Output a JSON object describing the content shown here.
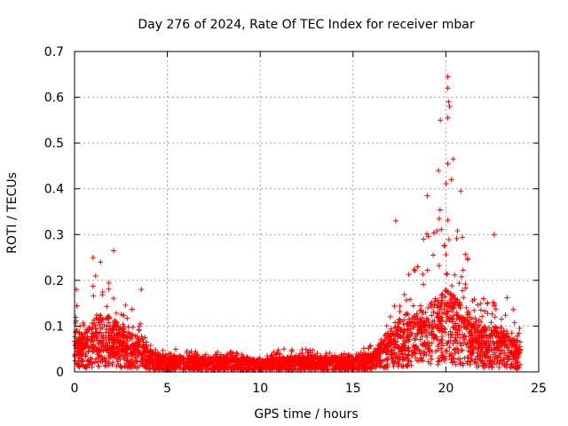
{
  "chart_data": {
    "type": "scatter",
    "title": "Day 276 of 2024, Rate Of TEC Index for receiver mbar",
    "xlabel": "GPS time / hours",
    "ylabel": "ROTI / TECUs",
    "xlim": [
      0,
      25
    ],
    "ylim": [
      0,
      0.7
    ],
    "x_ticks": [
      "0",
      "5",
      "10",
      "15",
      "20",
      "25"
    ],
    "y_ticks": [
      "0",
      "0.1",
      "0.2",
      "0.3",
      "0.4",
      "0.5",
      "0.6",
      "0.7"
    ],
    "grid": true,
    "marker": "plus",
    "marker_color": "#ff0000",
    "series": [
      {
        "name": "ROTI",
        "envelope_hours": [
          0,
          0.5,
          1,
          1.5,
          2,
          2.5,
          3,
          3.5,
          4,
          5,
          6,
          7,
          8,
          9,
          10,
          11,
          12,
          13,
          14,
          15,
          16,
          16.5,
          17,
          17.5,
          18,
          18.5,
          19,
          19.5,
          20,
          20.5,
          21,
          21.5,
          22,
          22.5,
          23,
          23.5,
          24
        ],
        "envelope_max": [
          0.16,
          0.12,
          0.2,
          0.24,
          0.18,
          0.16,
          0.15,
          0.12,
          0.06,
          0.05,
          0.05,
          0.04,
          0.05,
          0.04,
          0.03,
          0.05,
          0.05,
          0.05,
          0.04,
          0.04,
          0.06,
          0.1,
          0.15,
          0.2,
          0.22,
          0.24,
          0.33,
          0.35,
          0.45,
          0.4,
          0.3,
          0.2,
          0.18,
          0.18,
          0.17,
          0.16,
          0.1
        ],
        "envelope_typ": [
          0.06,
          0.05,
          0.07,
          0.08,
          0.07,
          0.06,
          0.05,
          0.05,
          0.03,
          0.02,
          0.02,
          0.02,
          0.02,
          0.02,
          0.015,
          0.02,
          0.02,
          0.02,
          0.02,
          0.02,
          0.025,
          0.04,
          0.06,
          0.07,
          0.08,
          0.08,
          0.09,
          0.1,
          0.11,
          0.1,
          0.09,
          0.07,
          0.06,
          0.06,
          0.06,
          0.05,
          0.04
        ],
        "notable_points": [
          {
            "x": 0.1,
            "y": 0.18
          },
          {
            "x": 1.0,
            "y": 0.25
          },
          {
            "x": 1.4,
            "y": 0.24
          },
          {
            "x": 2.1,
            "y": 0.265
          },
          {
            "x": 3.6,
            "y": 0.18
          },
          {
            "x": 17.3,
            "y": 0.33
          },
          {
            "x": 19.0,
            "y": 0.385
          },
          {
            "x": 19.6,
            "y": 0.44
          },
          {
            "x": 19.7,
            "y": 0.55
          },
          {
            "x": 20.1,
            "y": 0.645
          },
          {
            "x": 20.1,
            "y": 0.62
          },
          {
            "x": 20.15,
            "y": 0.59
          },
          {
            "x": 20.2,
            "y": 0.58
          },
          {
            "x": 20.1,
            "y": 0.555
          },
          {
            "x": 20.4,
            "y": 0.465
          },
          {
            "x": 20.1,
            "y": 0.455
          },
          {
            "x": 20.3,
            "y": 0.42
          },
          {
            "x": 20.8,
            "y": 0.395
          },
          {
            "x": 22.6,
            "y": 0.3
          },
          {
            "x": 18.8,
            "y": 0.29
          }
        ]
      }
    ]
  }
}
